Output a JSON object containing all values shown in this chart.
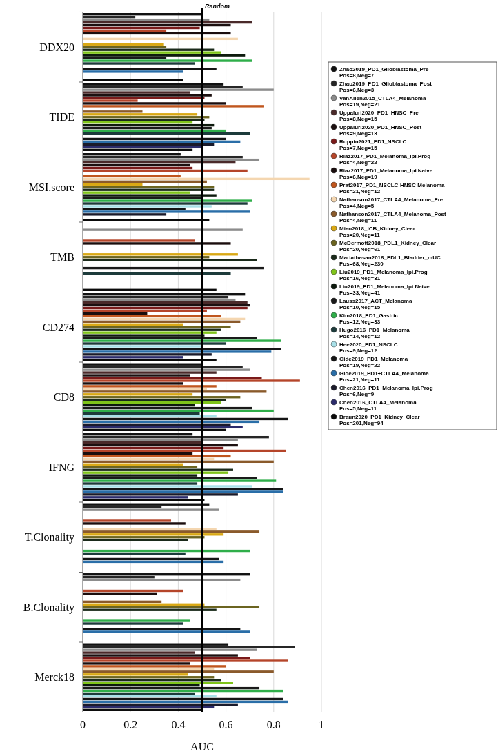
{
  "chart_data": {
    "type": "bar",
    "orientation": "horizontal",
    "xlabel": "AUC",
    "categories": [
      "DDX20",
      "TIDE",
      "MSI.score",
      "TMB",
      "CD274",
      "CD8",
      "IFNG",
      "T.Clonality",
      "B.Clonality",
      "Merck18"
    ],
    "xlim": [
      0,
      1
    ],
    "xticks": [
      0,
      0.2,
      0.4,
      0.6,
      0.8,
      1
    ],
    "grid": "x",
    "legend": "right",
    "ref_lines": [
      {
        "axis": "x",
        "value": 0.5,
        "label": "Random",
        "color": "#000000"
      }
    ],
    "series": [
      {
        "name": "Zhao2019_PD1_Glioblastoma_Pre\nPos=8,Neg=7",
        "color": "#111111",
        "values": [
          0.5,
          0.59,
          0.41,
          null,
          0.68,
          0.5,
          0.46,
          0.53,
          0.7,
          0.61
        ]
      },
      {
        "name": "Zhao2019_PD1_Glioblastoma_Post\nPos=6,Neg=3",
        "color": "#262626",
        "values": [
          0.22,
          0.67,
          0.67,
          null,
          0.61,
          0.67,
          0.78,
          0.33,
          0.3,
          0.89
        ]
      },
      {
        "name": "VanAllen2015_CTLA4_Melanoma\nPos=19,Neg=21",
        "color": "#8c8c8c",
        "values": [
          0.53,
          0.8,
          0.74,
          0.67,
          0.64,
          0.7,
          0.65,
          0.57,
          0.66,
          0.73
        ]
      },
      {
        "name": "Uppaluri2020_PD1_HNSC_Pre\nPos=8,Neg=15",
        "color": "#4a2a2a",
        "values": [
          0.71,
          0.45,
          0.64,
          null,
          0.69,
          0.56,
          0.5,
          null,
          null,
          0.47
        ]
      },
      {
        "name": "Uppaluri2020_PD1_HNSC_Post\nPos=9,Neg=13",
        "color": "#1c1010",
        "values": [
          0.62,
          0.54,
          0.45,
          null,
          0.7,
          0.45,
          0.65,
          null,
          null,
          0.65
        ]
      },
      {
        "name": "Ruppin2021_PD1_NSCLC\nPos=7,Neg=15",
        "color": "#7a1a1a",
        "values": [
          0.49,
          0.51,
          0.46,
          null,
          0.69,
          0.75,
          0.59,
          null,
          null,
          0.7
        ]
      },
      {
        "name": "Riaz2017_PD1_Melanoma_Ipi.Prog\nPos=4,Neg=22",
        "color": "#b5452a",
        "values": [
          0.35,
          0.23,
          0.69,
          0.47,
          0.52,
          0.91,
          0.85,
          0.37,
          0.42,
          0.86
        ]
      },
      {
        "name": "Riaz2017_PD1_Melanoma_Ipi.Naive\nPos=6,Neg=19",
        "color": "#1a0d0d",
        "values": [
          0.62,
          0.6,
          null,
          0.62,
          0.27,
          0.42,
          0.46,
          0.43,
          0.31,
          0.45
        ]
      },
      {
        "name": "Prat2017_PD1_NSCLC-HNSC-Melanoma\nPos=21,Neg=12",
        "color": "#c0561e",
        "values": [
          null,
          0.76,
          0.41,
          null,
          0.58,
          0.56,
          0.62,
          null,
          null,
          0.6
        ]
      },
      {
        "name": "Nathanson2017_CTLA4_Melanoma_Pre\nPos=4,Neg=5",
        "color": "#f4d6b0",
        "values": [
          0.65,
          null,
          0.95,
          null,
          0.68,
          0.52,
          0.55,
          0.56,
          null,
          0.55
        ]
      },
      {
        "name": "Nathanson2017_CTLA4_Melanoma_Post\nPos=4,Neg=11",
        "color": "#8a5a2b",
        "values": [
          null,
          0.25,
          0.52,
          null,
          0.66,
          0.77,
          0.8,
          0.74,
          0.33,
          0.8
        ]
      },
      {
        "name": "Miao2018_ICB_Kidney_Clear\nPos=20,Neg=11",
        "color": "#d9a814",
        "values": [
          0.34,
          0.48,
          0.25,
          0.65,
          0.42,
          0.46,
          0.42,
          0.59,
          0.51,
          0.44
        ]
      },
      {
        "name": "McDermott2018_PDL1_Kidney_Clear\nPos=20,Neg=61",
        "color": "#6b6420",
        "values": [
          0.35,
          0.53,
          0.55,
          0.53,
          0.62,
          0.66,
          0.48,
          0.51,
          0.74,
          0.55
        ]
      },
      {
        "name": "Mariathasan2018_PDL1_Bladder_mUC\nPos=68,Neg=230",
        "color": "#1a2a1a",
        "values": [
          0.55,
          0.51,
          0.55,
          0.73,
          0.58,
          0.6,
          0.63,
          0.44,
          0.56,
          0.58
        ]
      },
      {
        "name": "Liu2019_PD1_Melanoma_Ipi.Prog\nPos=16,Neg=31",
        "color": "#7fc41a",
        "values": [
          0.58,
          0.46,
          0.45,
          null,
          0.56,
          0.58,
          0.61,
          null,
          null,
          0.63
        ]
      },
      {
        "name": "Liu2019_PD1_Melanoma_Ipi.Naive\nPos=33,Neg=41",
        "color": "#0d1a0d",
        "values": [
          0.68,
          0.55,
          0.56,
          null,
          0.51,
          0.47,
          0.48,
          null,
          null,
          0.49
        ]
      },
      {
        "name": "Lauss2017_ACT_Melanoma\nPos=10,Neg=15",
        "color": "#1a1a1a",
        "values": [
          0.35,
          0.54,
          0.5,
          0.76,
          0.73,
          0.71,
          0.73,
          null,
          null,
          0.74
        ]
      },
      {
        "name": "Kim2018_PD1_Gastric\nPos=12,Neg=33",
        "color": "#2fae4a",
        "values": [
          0.71,
          0.6,
          0.71,
          null,
          0.83,
          0.8,
          0.81,
          0.7,
          0.45,
          0.84
        ]
      },
      {
        "name": "Hugo2016_PD1_Melanoma\nPos=14,Neg=12",
        "color": "#1d3b3b",
        "values": [
          0.47,
          0.7,
          0.69,
          0.62,
          0.6,
          0.49,
          0.48,
          0.43,
          0.42,
          0.47
        ]
      },
      {
        "name": "Hee2020_PD1_NSCLC\nPos=9,Neg=12",
        "color": "#a8e0e8",
        "values": [
          null,
          null,
          0.54,
          null,
          0.5,
          0.56,
          0.71,
          null,
          null,
          0.56
        ]
      },
      {
        "name": "Gide2019_PD1_Melanoma\nPos=19,Neg=22",
        "color": "#151515",
        "values": [
          0.56,
          0.6,
          0.43,
          null,
          0.83,
          0.86,
          0.84,
          0.57,
          0.66,
          0.84
        ]
      },
      {
        "name": "Gide2019_PD1+CTLA4_Melanoma\nPos=21,Neg=11",
        "color": "#2a6ea8",
        "values": [
          0.42,
          0.66,
          0.7,
          null,
          0.79,
          0.74,
          0.84,
          0.59,
          0.7,
          0.86
        ]
      },
      {
        "name": "Chen2016_PD1_Melanoma_Ipi.Prog\nPos=6,Neg=9",
        "color": "#1a1a2a",
        "values": [
          null,
          0.55,
          0.35,
          null,
          0.54,
          0.62,
          0.65,
          null,
          null,
          0.65
        ]
      },
      {
        "name": "Chen2016_CTLA4_Melanoma\nPos=5,Neg=11",
        "color": "#2b2b6b",
        "values": [
          null,
          0.5,
          null,
          null,
          0.42,
          0.67,
          0.44,
          null,
          null,
          0.55
        ]
      },
      {
        "name": "Braun2020_PD1_Kidney_Clear\nPos=201,Neg=94",
        "color": "#0a0a0a",
        "values": [
          0.42,
          0.46,
          0.53,
          0.56,
          0.56,
          0.6,
          0.51,
          null,
          null,
          0.5
        ]
      }
    ]
  }
}
